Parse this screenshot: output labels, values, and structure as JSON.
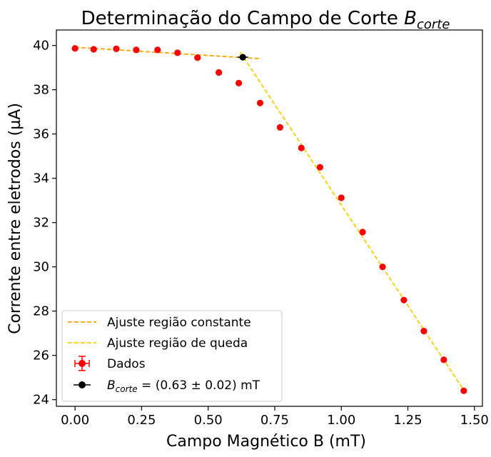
{
  "chart_data": {
    "type": "scatter",
    "title": "Determinação do Campo de Corte",
    "title_math": "B",
    "title_math_sub": "corte",
    "xlabel": "Campo Magnético B (mT)",
    "ylabel": "Corrente entre eletrodos (µA)",
    "xlim": [
      -0.07,
      1.53
    ],
    "ylim": [
      23.7,
      40.7
    ],
    "x_ticks": [
      "0.00",
      "0.25",
      "0.50",
      "0.75",
      "1.00",
      "1.25",
      "1.50"
    ],
    "y_ticks": [
      "24",
      "26",
      "28",
      "30",
      "32",
      "34",
      "36",
      "38",
      "40"
    ],
    "grid": false,
    "legend_position": "lower-left",
    "series": [
      {
        "name": "Dados",
        "kind": "scatter-errorbar",
        "color": "#ff0000",
        "x": [
          0.0,
          0.07,
          0.155,
          0.23,
          0.31,
          0.385,
          0.46,
          0.54,
          0.615,
          0.695,
          0.77,
          0.85,
          0.92,
          1.0,
          1.08,
          1.155,
          1.235,
          1.31,
          1.385,
          1.46
        ],
        "y": [
          39.87,
          39.83,
          39.85,
          39.8,
          39.8,
          39.67,
          39.45,
          38.78,
          38.3,
          37.4,
          36.3,
          35.37,
          34.5,
          33.12,
          31.57,
          30.0,
          28.5,
          27.1,
          25.8,
          24.4
        ]
      },
      {
        "name": "Ajuste região constante",
        "kind": "dashed-line",
        "color": "#ffa500",
        "x": [
          0.0,
          0.7
        ],
        "y": [
          39.92,
          39.4
        ]
      },
      {
        "name": "Ajuste região de queda",
        "kind": "dashed-line",
        "color": "#ffcc00",
        "x": [
          0.62,
          1.47
        ],
        "y": [
          39.7,
          24.25
        ]
      },
      {
        "name_math": "B",
        "name_math_sub": "corte",
        "name_rest": " = (0.63 ± 0.02) mT",
        "kind": "point-errorbar",
        "color": "#000000",
        "x": [
          0.63
        ],
        "y": [
          39.47
        ],
        "xerr": 0.02
      }
    ]
  }
}
